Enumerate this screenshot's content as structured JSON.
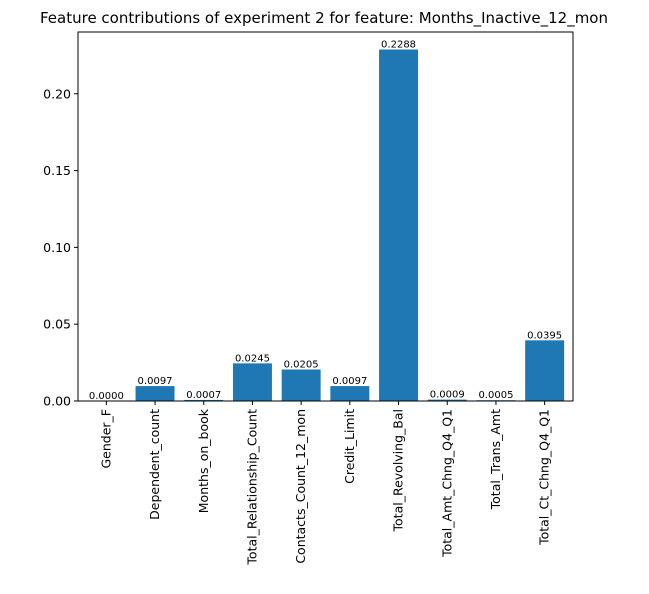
{
  "chart_data": {
    "type": "bar",
    "title": "Feature contributions of experiment 2 for feature: Months_Inactive_12_mon",
    "xlabel": "",
    "ylabel": "",
    "categories": [
      "Gender_F",
      "Dependent_count",
      "Months_on_book",
      "Total_Relationship_Count",
      "Contacts_Count_12_mon",
      "Credit_Limit",
      "Total_Revolving_Bal",
      "Total_Amt_Chng_Q4_Q1",
      "Total_Trans_Amt",
      "Total_Ct_Chng_Q4_Q1"
    ],
    "values": [
      0.0,
      0.0097,
      0.0007,
      0.0245,
      0.0205,
      0.0097,
      0.2288,
      0.0009,
      0.0005,
      0.0395
    ],
    "value_labels": [
      "0.0000",
      "0.0097",
      "0.0007",
      "0.0245",
      "0.0205",
      "0.0097",
      "0.2288",
      "0.0009",
      "0.0005",
      "0.0395"
    ],
    "yticks": [
      0.0,
      0.05,
      0.1,
      0.15,
      0.2
    ],
    "ytick_labels": [
      "0.00",
      "0.05",
      "0.10",
      "0.15",
      "0.20"
    ],
    "ylim": [
      0,
      0.2402
    ],
    "bar_color": "#1f77b4",
    "grid": false,
    "legend": "none"
  }
}
